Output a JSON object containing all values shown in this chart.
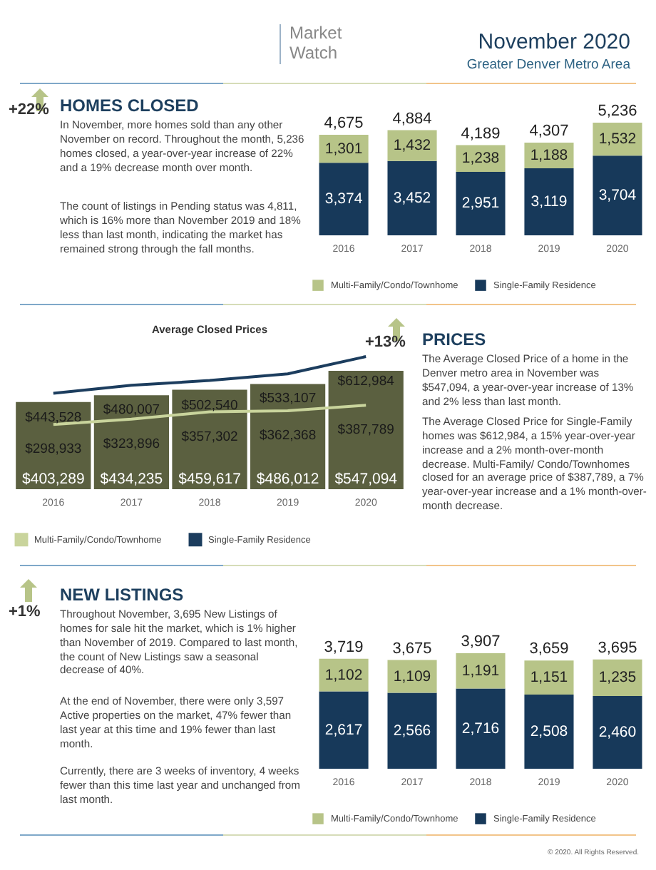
{
  "chart_data": [
    {
      "type": "bar",
      "stacked": true,
      "legend": "bottom",
      "categories": [
        "2016",
        "2017",
        "2018",
        "2019",
        "2020"
      ],
      "series": [
        {
          "name": "Single-Family Residence",
          "color": "#17395a",
          "values": [
            3374,
            3452,
            2951,
            3119,
            3704
          ],
          "value_labels": [
            "3,374",
            "3,452",
            "2,951",
            "3,119",
            "3,704"
          ]
        },
        {
          "name": "Multi-Family/Condo/Townhome",
          "color": "#b7c488",
          "values": [
            1301,
            1432,
            1238,
            1188,
            1532
          ],
          "value_labels": [
            "1,301",
            "1,432",
            "1,238",
            "1,188",
            "1,532"
          ]
        }
      ],
      "totals": [
        "4,675",
        "4,884",
        "4,189",
        "4,307",
        "5,236"
      ],
      "annotations": [
        "Market Watch",
        "November 2020",
        "Greater Denver Metro Area",
        "+22%",
        "HOMES CLOSED",
        "In November, more homes sold than any other November on record. Throughout the month, 5,236 homes closed, a year-over-year increase of 22% and a 19% decrease month over month.",
        "The count of listings in Pending status was 4,811, which is 16% more than November 2019 and 18% less than last month, indicating the market has remained strong through the fall months."
      ]
    },
    {
      "type": "bar",
      "title": "Average Closed Prices",
      "legend": "bottom",
      "marker": "none",
      "categories": [
        "2016",
        "2017",
        "2018",
        "2019",
        "2020"
      ],
      "series": [
        {
          "type": "bar",
          "color": "#5b6040",
          "values": [
            403289,
            434235,
            459617,
            486012,
            547094
          ],
          "value_labels": [
            "$403,289",
            "$434,235",
            "$459,617",
            "$486,012",
            "$547,094"
          ]
        },
        {
          "type": "line",
          "name": "Multi-Family/Condo/Townhome",
          "color": "#c9d49c",
          "values": [
            298933,
            323896,
            357302,
            362368,
            387789
          ],
          "value_labels": [
            "$298,933",
            "$323,896",
            "$357,302",
            "$362,368",
            "$387,789"
          ]
        },
        {
          "type": "line",
          "name": "Single-Family Residence",
          "color": "#1c3d5e",
          "values": [
            443528,
            480007,
            502540,
            533107,
            612984
          ],
          "value_labels": [
            "$443,528",
            "$480,007",
            "$502,540",
            "$533,107",
            "$612,984"
          ]
        }
      ],
      "annotations": [
        "+13%",
        "PRICES",
        "The Average Closed Price of a home in the Denver metro area in November was $547,094, a year-over-year increase of 13% and 2% less than last month.",
        "The Average Closed Price for Single-Family homes was $612,984, a 15% year-over-year increase and a 2% month-over-month decrease. Multi-Family/ Condo/Townhomes closed for an average price of $387,789, a 7% year-over-year increase and a 1% month-over-month decrease."
      ]
    },
    {
      "type": "bar",
      "stacked": true,
      "legend": "bottom",
      "categories": [
        "2016",
        "2017",
        "2018",
        "2019",
        "2020"
      ],
      "series": [
        {
          "name": "Single-Family Residence",
          "color": "#17395a",
          "values": [
            2617,
            2566,
            2716,
            2508,
            2460
          ],
          "value_labels": [
            "2,617",
            "2,566",
            "2,716",
            "2,508",
            "2,460"
          ]
        },
        {
          "name": "Multi-Family/Condo/Townhome",
          "color": "#b7c488",
          "values": [
            1102,
            1109,
            1191,
            1151,
            1235
          ],
          "value_labels": [
            "1,102",
            "1,109",
            "1,191",
            "1,151",
            "1,235"
          ]
        }
      ],
      "totals": [
        "3,719",
        "3,675",
        "3,907",
        "3,659",
        "3,695"
      ],
      "annotations": [
        "+1%",
        "NEW LISTINGS",
        "Throughout November, 3,695 New Listings of homes for sale hit the market, which is 1% higher than November of 2019. Compared to last month, the count of New Listings saw a seasonal decrease of 40%.",
        "At the end of November, there were only 3,597 Active properties on the market, 47% fewer than last year at this time and 19% fewer than last month.",
        "Currently, there are 3 weeks of inventory, 4 weeks fewer than this time last year and unchanged from last month.",
        "© 2020. All Rights Reserved."
      ]
    }
  ]
}
